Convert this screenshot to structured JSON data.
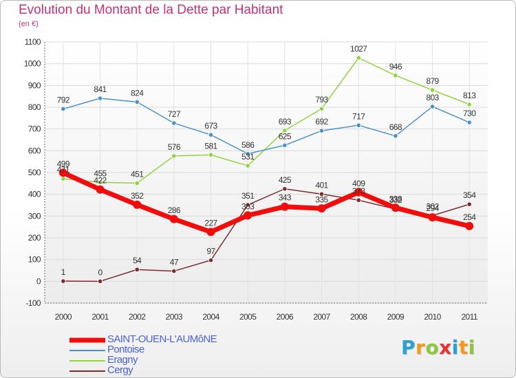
{
  "title": "Evolution du Montant de la Dette par Habitant",
  "unit": "(en €)",
  "brand": {
    "letters": [
      "P",
      "r",
      "o",
      "x",
      "i",
      "t",
      "i"
    ],
    "colors": [
      "#2aa0d8",
      "#f39a1d",
      "#8dc63f",
      "#e8302f",
      "#2aa0d8",
      "#f39a1d",
      "#8dc63f"
    ]
  },
  "chart_data": {
    "type": "line",
    "x": [
      "2000",
      "2001",
      "2002",
      "2003",
      "2004",
      "2005",
      "2006",
      "2007",
      "2008",
      "2009",
      "2010",
      "2011"
    ],
    "yticks": [
      "-100",
      "0",
      "100",
      "200",
      "300",
      "400",
      "500",
      "600",
      "700",
      "800",
      "900",
      "1000",
      "1100"
    ],
    "ylim": [
      -100,
      1100
    ],
    "grid": true,
    "legend_position": "bottom-left",
    "series": [
      {
        "name": "SAINT-OUEN-L'AUMôNE",
        "color": "#f20d0d",
        "values": [
          499,
          422,
          352,
          286,
          227,
          303,
          343,
          335,
          409,
          338,
          294,
          254
        ],
        "labels": [
          "499",
          "422",
          "352",
          "286",
          "227",
          "303",
          "343",
          "335",
          "409",
          "338",
          "294",
          "254"
        ]
      },
      {
        "name": "Pontoise",
        "color": "#4a90c8",
        "values": [
          792,
          841,
          824,
          727,
          673,
          586,
          625,
          692,
          717,
          668,
          803,
          730
        ],
        "labels": [
          "792",
          "841",
          "824",
          "727",
          "673",
          "586",
          "625",
          "692",
          "717",
          "668",
          "803",
          "730"
        ]
      },
      {
        "name": "Eragny",
        "color": "#8fd43f",
        "values": [
          471,
          455,
          451,
          576,
          581,
          531,
          693,
          793,
          1027,
          946,
          879,
          813
        ],
        "labels": [
          "471",
          "455",
          "451",
          "576",
          "581",
          "531",
          "693",
          "793",
          "1027",
          "946",
          "879",
          "813"
        ]
      },
      {
        "name": "Cergy",
        "color": "#7a2c2c",
        "values": [
          1,
          0,
          54,
          47,
          97,
          351,
          425,
          401,
          373,
          332,
          302,
          354
        ],
        "labels": [
          "1",
          "0",
          "54",
          "47",
          "97",
          "351",
          "425",
          "401",
          "373",
          "332",
          "302",
          "354"
        ]
      }
    ]
  }
}
